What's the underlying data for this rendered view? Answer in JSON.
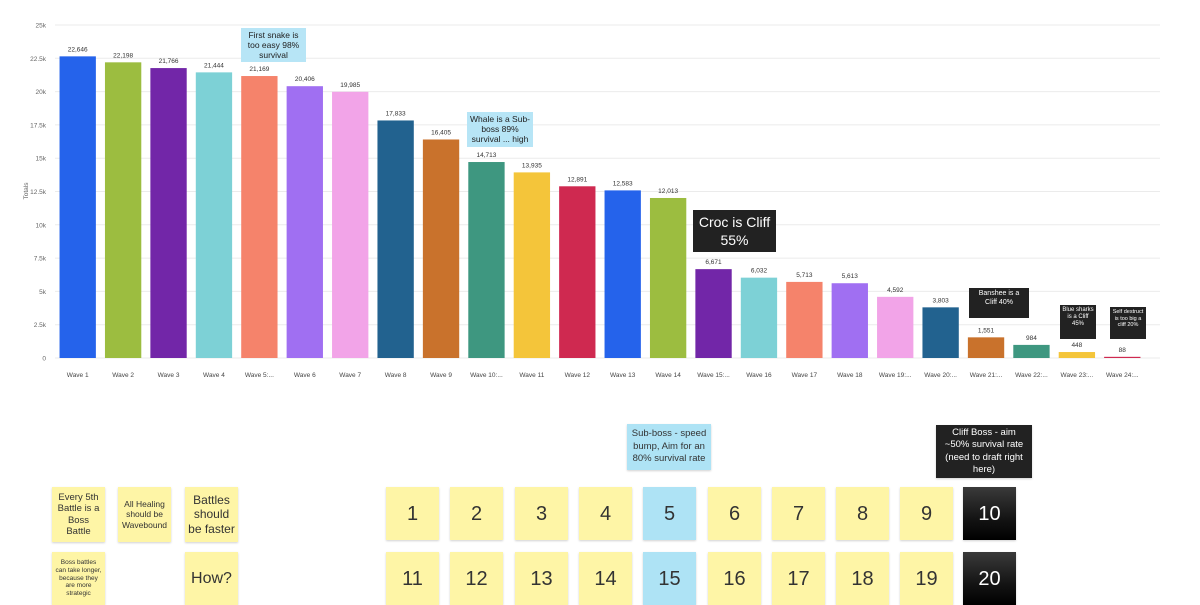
{
  "chart_data": {
    "type": "bar",
    "ylabel": "Totals",
    "ylim": [
      0,
      25000
    ],
    "y_ticks": [
      {
        "value": 0,
        "label": "0"
      },
      {
        "value": 2500,
        "label": "2.5k"
      },
      {
        "value": 5000,
        "label": "5k"
      },
      {
        "value": 7500,
        "label": "7.5k"
      },
      {
        "value": 10000,
        "label": "10k"
      },
      {
        "value": 12500,
        "label": "12.5k"
      },
      {
        "value": 15000,
        "label": "15k"
      },
      {
        "value": 17500,
        "label": "17.5k"
      },
      {
        "value": 20000,
        "label": "20k"
      },
      {
        "value": 22500,
        "label": "22.5k"
      },
      {
        "value": 25000,
        "label": "25k"
      }
    ],
    "grid": true,
    "legend": "none",
    "categories": [
      "Wave 1",
      "Wave 2",
      "Wave 3",
      "Wave 4",
      "Wave 5:...",
      "Wave 6",
      "Wave 7",
      "Wave 8",
      "Wave 9",
      "Wave 10:...",
      "Wave 11",
      "Wave 12",
      "Wave 13",
      "Wave 14",
      "Wave 15:...",
      "Wave 16",
      "Wave 17",
      "Wave 18",
      "Wave 19:...",
      "Wave 20:...",
      "Wave 21:...",
      "Wave 22:...",
      "Wave 23:...",
      "Wave 24:..."
    ],
    "values": [
      22646,
      22198,
      21766,
      21444,
      21169,
      20406,
      19985,
      17833,
      16405,
      14713,
      13935,
      12891,
      12583,
      12013,
      6671,
      6032,
      5713,
      5613,
      4592,
      3803,
      1551,
      984,
      448,
      88
    ],
    "value_labels": [
      "22,646",
      "22,198",
      "21,766",
      "21,444",
      "21,169",
      "20,406",
      "19,985",
      "17,833",
      "16,405",
      "14,713",
      "13,935",
      "12,891",
      "12,583",
      "12,013",
      "6,671",
      "6,032",
      "5,713",
      "5,613",
      "4,592",
      "3,803",
      "1,551",
      "984",
      "448",
      "88"
    ],
    "colors": [
      "#2563eb",
      "#9cbd40",
      "#7226a8",
      "#7dd1d6",
      "#f5836b",
      "#a06ff2",
      "#f2a4e8",
      "#22628f",
      "#c9722c",
      "#3e9780",
      "#f4c53a",
      "#cf2950",
      "#2563eb",
      "#9cbd40",
      "#7226a8",
      "#7dd1d6",
      "#f5836b",
      "#a06ff2",
      "#f2a4e8",
      "#22628f",
      "#c9722c",
      "#3e9780",
      "#f4c53a",
      "#cf2950"
    ],
    "annotations": [
      {
        "bar": 4,
        "text": "First snake is too easy 98% survival",
        "style": "blue"
      },
      {
        "bar": 9,
        "text": "Whale is a Sub-boss 89% survival ... high",
        "style": "blue"
      },
      {
        "bar": 14,
        "text": "Croc is Cliff 55%",
        "style": "dark"
      },
      {
        "bar": 20,
        "text": "Banshee is a Cliff 40%",
        "style": "dark"
      },
      {
        "bar": 22,
        "text": "Blue sharks is a Cliff 45%",
        "style": "dark"
      },
      {
        "bar": 23,
        "text": "Self destruct is too big a cliff 20%",
        "style": "dark"
      }
    ]
  },
  "board": {
    "notes": [
      {
        "text": "Every 5th Battle is a Boss Battle"
      },
      {
        "text": "All Healing should be Wavebound"
      },
      {
        "text": "Battles should be faster"
      },
      {
        "text": "Boss battles can take longer, because they are more strategic"
      },
      {
        "text": "How?"
      }
    ],
    "callouts": [
      {
        "text": "Sub-boss - speed bump, Aim for an 80% survival rate"
      },
      {
        "text": "Cliff Boss - aim ~50% survival rate (need to draft right here)"
      }
    ],
    "waves_row1": [
      "1",
      "2",
      "3",
      "4",
      "5",
      "6",
      "7",
      "8",
      "9",
      "10"
    ],
    "waves_row2": [
      "11",
      "12",
      "13",
      "14",
      "15",
      "16",
      "17",
      "18",
      "19",
      "20"
    ],
    "wave_colors": {
      "normal": "#fef5a6",
      "subboss": "#aee3f5",
      "cliff": "#111111"
    }
  }
}
